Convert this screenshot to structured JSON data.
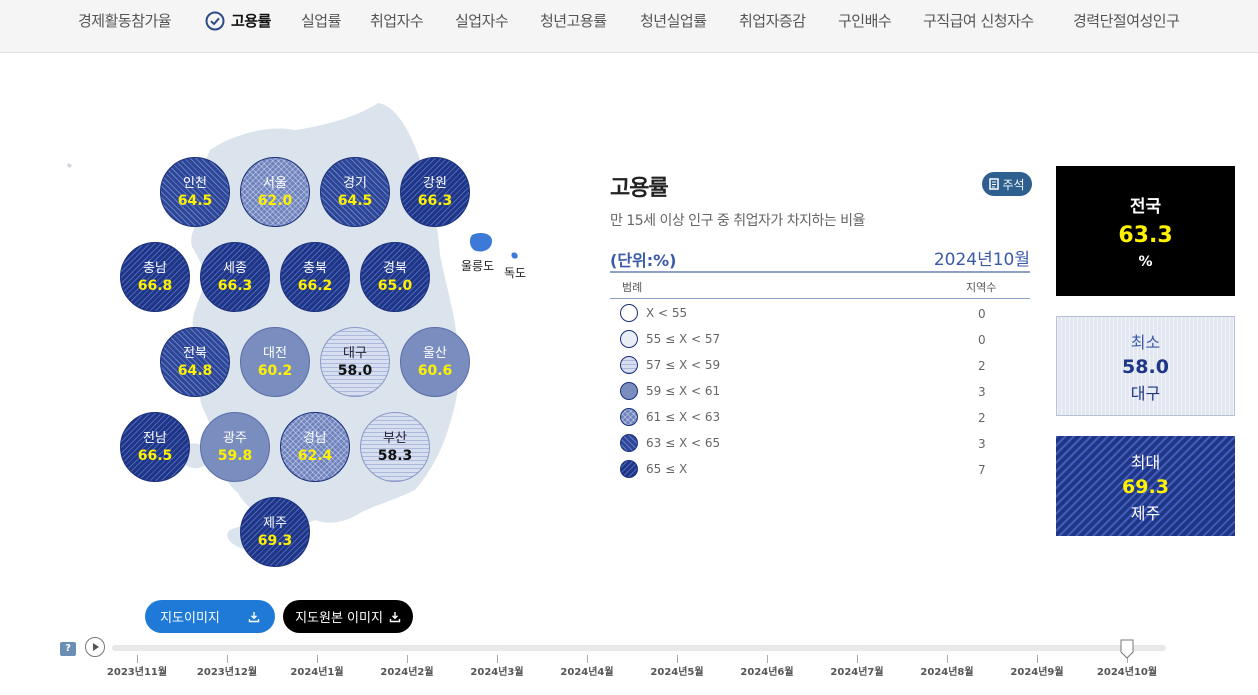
{
  "nav": {
    "items": [
      "경제활동참가율",
      "고용률",
      "실업률",
      "취업자수",
      "실업자수",
      "청년고용률",
      "청년실업률",
      "취업자증감",
      "구인배수",
      "구직급여 신청자수",
      "경력단절여성인구"
    ],
    "active": "고용률"
  },
  "map": {
    "regions": [
      {
        "name": "인천",
        "value": "64.5",
        "class": "c63"
      },
      {
        "name": "서울",
        "value": "62.0",
        "class": "c61"
      },
      {
        "name": "경기",
        "value": "64.5",
        "class": "c63"
      },
      {
        "name": "강원",
        "value": "66.3",
        "class": "c65"
      },
      {
        "name": "충남",
        "value": "66.8",
        "class": "c65"
      },
      {
        "name": "세종",
        "value": "66.3",
        "class": "c65"
      },
      {
        "name": "충북",
        "value": "66.2",
        "class": "c65"
      },
      {
        "name": "경북",
        "value": "65.0",
        "class": "c65"
      },
      {
        "name": "전북",
        "value": "64.8",
        "class": "c63"
      },
      {
        "name": "대전",
        "value": "60.2",
        "class": "c59"
      },
      {
        "name": "대구",
        "value": "58.0",
        "class": "c57"
      },
      {
        "name": "울산",
        "value": "60.6",
        "class": "c59"
      },
      {
        "name": "전남",
        "value": "66.5",
        "class": "c65"
      },
      {
        "name": "광주",
        "value": "59.8",
        "class": "c59"
      },
      {
        "name": "경남",
        "value": "62.4",
        "class": "c61"
      },
      {
        "name": "부산",
        "value": "58.3",
        "class": "c57"
      },
      {
        "name": "제주",
        "value": "69.3",
        "class": "c65"
      }
    ],
    "islands": {
      "ulleungdo": "울릉도",
      "dokdo": "독도"
    }
  },
  "panel": {
    "title": "고용률",
    "note_label": "주석",
    "subtitle": "만 15세 이상 인구 중 취업자가 차지하는 비율",
    "unit": "(단위:%)",
    "date": "2024년10월",
    "legend_header": "범례",
    "count_header": "지역수",
    "legend": [
      {
        "range": "X < 55",
        "count": "0",
        "class": "c0"
      },
      {
        "range": "55 ≤ X < 57",
        "count": "0",
        "class": "c55"
      },
      {
        "range": "57 ≤ X < 59",
        "count": "2",
        "class": "c57"
      },
      {
        "range": "59 ≤ X < 61",
        "count": "3",
        "class": "c59"
      },
      {
        "range": "61 ≤ X < 63",
        "count": "2",
        "class": "c61"
      },
      {
        "range": "63 ≤ X < 65",
        "count": "3",
        "class": "c63"
      },
      {
        "range": "65 ≤ X",
        "count": "7",
        "class": "c65"
      }
    ]
  },
  "summary": {
    "national": {
      "label": "전국",
      "value": "63.3",
      "unit": "%"
    },
    "min": {
      "label": "최소",
      "value": "58.0",
      "region": "대구"
    },
    "max": {
      "label": "최대",
      "value": "69.3",
      "region": "제주"
    }
  },
  "buttons": {
    "map_image": "지도이미지",
    "original_image": "지도원본 이미지",
    "help": "?"
  },
  "timeline": {
    "months": [
      "2023년11월",
      "2023년12월",
      "2024년1월",
      "2024년2월",
      "2024년3월",
      "2024년4월",
      "2024년5월",
      "2024년6월",
      "2024년7월",
      "2024년8월",
      "2024년9월",
      "2024년10월"
    ],
    "selected": "2024년10월"
  },
  "colors": {
    "accent": "#1e7ad6",
    "dark_blue": "#1f3585",
    "highlight_yellow": "#fff200",
    "label_blue": "#3a5aa8"
  }
}
